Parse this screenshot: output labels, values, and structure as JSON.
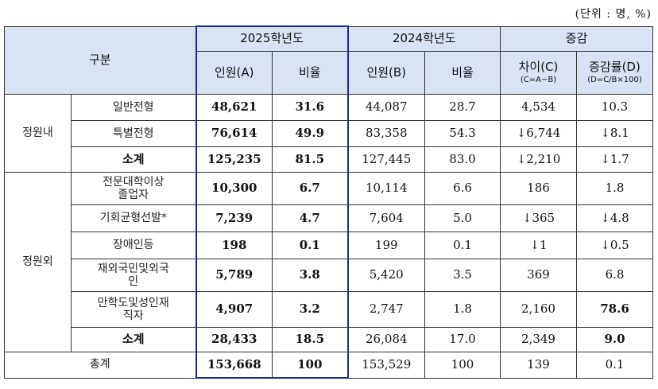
{
  "unit_note": "(단위 : 명, %)",
  "header": {
    "category": "구분",
    "y2025": "2025학년도",
    "y2024": "2024학년도",
    "change": "증감",
    "count_a": "인원(A)",
    "ratio": "비율",
    "count_b": "인원(B)",
    "diff": "차이(C)",
    "diff_formula": "(C=A−B)",
    "rate": "증감률(D)",
    "rate_formula": "(D=C/B×100)"
  },
  "groups": {
    "inner": "정원내",
    "outer": "정원외"
  },
  "rows": [
    {
      "label": "일반전형",
      "a": "48,621",
      "ar": "31.6",
      "b": "44,087",
      "br": "28.7",
      "c": "4,534",
      "d": "10.3"
    },
    {
      "label": "특별전형",
      "a": "76,614",
      "ar": "49.9",
      "b": "83,358",
      "br": "54.3",
      "c": "↓6,744",
      "d": "↓8.1"
    },
    {
      "label": "소계",
      "a": "125,235",
      "ar": "81.5",
      "b": "127,445",
      "br": "83.0",
      "c": "↓2,210",
      "d": "↓1.7"
    },
    {
      "label": "전문대학이상\n졸업자",
      "a": "10,300",
      "ar": "6.7",
      "b": "10,114",
      "br": "6.6",
      "c": "186",
      "d": "1.8"
    },
    {
      "label": "기회균형선발*",
      "a": "7,239",
      "ar": "4.7",
      "b": "7,604",
      "br": "5.0",
      "c": "↓365",
      "d": "↓4.8"
    },
    {
      "label": "장애인등",
      "a": "198",
      "ar": "0.1",
      "b": "199",
      "br": "0.1",
      "c": "↓1",
      "d": "↓0.5"
    },
    {
      "label": "재외국민및외국\n인",
      "a": "5,789",
      "ar": "3.8",
      "b": "5,420",
      "br": "3.5",
      "c": "369",
      "d": "6.8"
    },
    {
      "label": "만학도및성인재\n직자",
      "a": "4,907",
      "ar": "3.2",
      "b": "2,747",
      "br": "1.8",
      "c": "2,160",
      "d": "78.6"
    },
    {
      "label": "소계",
      "a": "28,433",
      "ar": "18.5",
      "b": "26,084",
      "br": "17.0",
      "c": "2,349",
      "d": "9.0"
    }
  ],
  "total": {
    "label": "총계",
    "a": "153,668",
    "ar": "100",
    "b": "153,529",
    "br": "100",
    "c": "139",
    "d": "0.1"
  },
  "colors": {
    "header_bg": "#d9e3f3",
    "highlight_border": "#1d2b8f"
  }
}
